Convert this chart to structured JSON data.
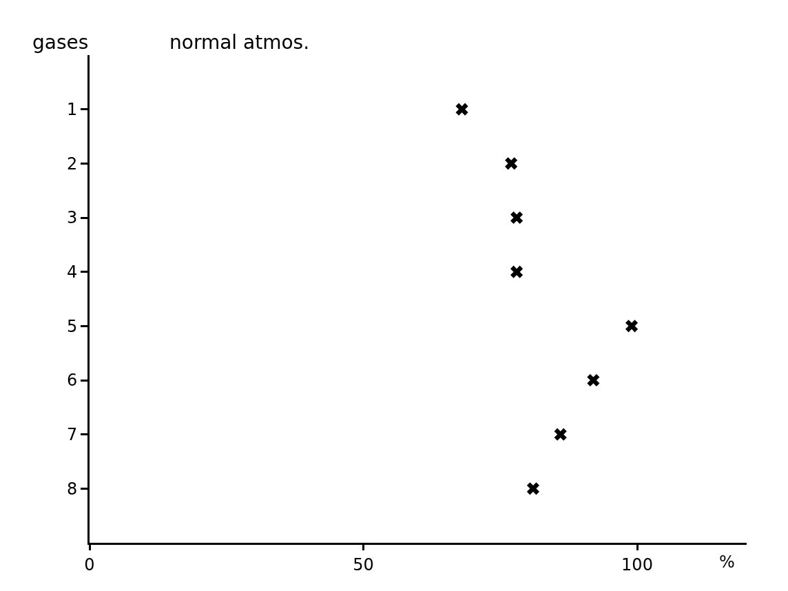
{
  "chart_data": {
    "type": "scatter",
    "orientation": "horizontal",
    "title": "normal atmos.",
    "ylabel": "gases",
    "xlabel": "%",
    "categories": [
      "1",
      "2",
      "3",
      "4",
      "5",
      "6",
      "7",
      "8"
    ],
    "series": [
      {
        "color": "#000000",
        "values": [
          68,
          77,
          78,
          78,
          99,
          92,
          86,
          81
        ]
      }
    ],
    "xlim": [
      0,
      120
    ],
    "xticks": [
      0,
      50,
      100
    ],
    "marker": "cross"
  }
}
